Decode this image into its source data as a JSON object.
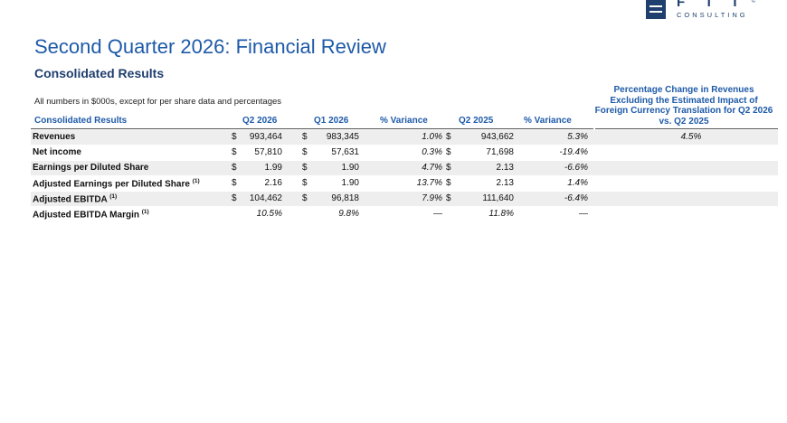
{
  "logo": {
    "letters": "FTI",
    "text": "CONSULTING",
    "tm": "™"
  },
  "title": "Second Quarter 2026: Financial Review",
  "subtitle": "Consolidated Results",
  "note": "All numbers in $000s, except for per share data and percentages",
  "table": {
    "headers": {
      "label": "Consolidated Results",
      "q2_2026": "Q2 2026",
      "q1_2026": "Q1 2026",
      "var1": "% Variance",
      "q2_2025": "Q2 2025",
      "var2": "% Variance",
      "pct_change": "Percentage Change in Revenues Excluding the Estimated Impact of Foreign Currency Translation for Q2 2026 vs. Q2 2025"
    },
    "rows": [
      {
        "label": "Revenues",
        "sup": "",
        "cur1": "$",
        "q2_2026": "993,464",
        "cur2": "$",
        "q1_2026": "983,345",
        "var1": "1.0%",
        "cur3": "$",
        "q2_2025": "943,662",
        "var2": "5.3%",
        "pct": "4.5%"
      },
      {
        "label": "Net income",
        "sup": "",
        "cur1": "$",
        "q2_2026": "57,810",
        "cur2": "$",
        "q1_2026": "57,631",
        "var1": "0.3%",
        "cur3": "$",
        "q2_2025": "71,698",
        "var2": "-19.4%",
        "pct": ""
      },
      {
        "label": "Earnings per Diluted Share",
        "sup": "",
        "cur1": "$",
        "q2_2026": "1.99",
        "cur2": "$",
        "q1_2026": "1.90",
        "var1": "4.7%",
        "cur3": "$",
        "q2_2025": "2.13",
        "var2": "-6.6%",
        "pct": ""
      },
      {
        "label": "Adjusted Earnings per Diluted Share",
        "sup": "(1)",
        "cur1": "$",
        "q2_2026": "2.16",
        "cur2": "$",
        "q1_2026": "1.90",
        "var1": "13.7%",
        "cur3": "$",
        "q2_2025": "2.13",
        "var2": "1.4%",
        "pct": ""
      },
      {
        "label": "Adjusted EBITDA",
        "sup": "(1)",
        "cur1": "$",
        "q2_2026": "104,462",
        "cur2": "$",
        "q1_2026": "96,818",
        "var1": "7.9%",
        "cur3": "$",
        "q2_2025": "111,640",
        "var2": "-6.4%",
        "pct": ""
      },
      {
        "label": "Adjusted EBITDA Margin",
        "sup": "(1)",
        "cur1": "",
        "q2_2026": "10.5%",
        "cur2": "",
        "q1_2026": "9.8%",
        "var1": "—",
        "cur3": "",
        "q2_2025": "11.8%",
        "var2": "—",
        "pct": ""
      }
    ]
  }
}
